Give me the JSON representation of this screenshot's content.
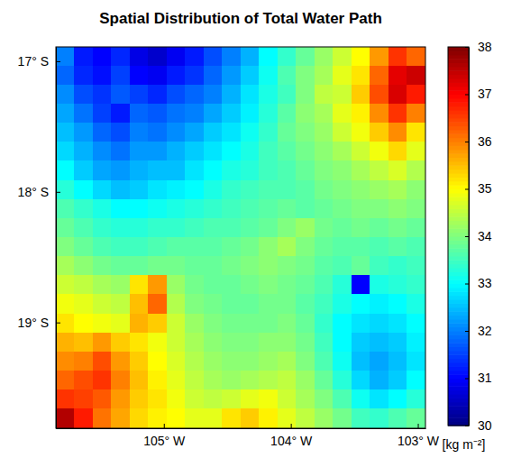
{
  "chart_data": {
    "type": "heatmap",
    "title": "Spatial Distribution of Total Water Path",
    "x": [
      -105.777,
      -105.632,
      -105.486,
      -105.341,
      -105.195,
      -105.05,
      -104.904,
      -104.759,
      -104.613,
      -104.468,
      -104.322,
      -104.177,
      -104.031,
      -103.886,
      -103.74,
      -103.595,
      -103.449,
      -103.304,
      -103.158,
      -103.013
    ],
    "y": [
      -16.963,
      -17.109,
      -17.255,
      -17.401,
      -17.547,
      -17.693,
      -17.839,
      -17.985,
      -18.131,
      -18.277,
      -18.423,
      -18.569,
      -18.715,
      -18.861,
      -19.007,
      -19.153,
      -19.299,
      -19.445,
      -19.591,
      -19.737
    ],
    "values": [
      [
        32.0,
        31.2,
        31.0,
        31.3,
        30.8,
        30.6,
        30.9,
        31.2,
        31.6,
        32.0,
        32.4,
        33.0,
        33.4,
        33.8,
        34.2,
        34.6,
        35.0,
        35.8,
        36.6,
        36.2
      ],
      [
        31.8,
        31.3,
        31.1,
        31.5,
        31.0,
        30.9,
        31.2,
        31.4,
        31.8,
        32.2,
        32.6,
        33.1,
        33.6,
        34.0,
        34.3,
        34.8,
        35.2,
        36.2,
        37.2,
        37.4
      ],
      [
        32.1,
        31.6,
        31.4,
        31.7,
        31.5,
        31.3,
        31.6,
        31.8,
        32.0,
        32.4,
        32.8,
        33.2,
        33.5,
        34.0,
        34.5,
        34.6,
        35.4,
        36.4,
        37.3,
        36.8
      ],
      [
        32.3,
        31.9,
        31.5,
        31.2,
        31.8,
        31.7,
        31.9,
        32.0,
        32.3,
        32.6,
        32.9,
        33.3,
        33.7,
        34.1,
        34.3,
        34.8,
        35.1,
        35.9,
        36.6,
        36.0
      ],
      [
        32.5,
        32.2,
        31.8,
        31.6,
        32.0,
        31.9,
        32.1,
        32.3,
        32.6,
        32.8,
        33.1,
        33.4,
        33.8,
        34.0,
        34.2,
        34.6,
        34.9,
        35.4,
        35.9,
        35.2
      ],
      [
        32.7,
        32.4,
        32.1,
        31.9,
        32.2,
        32.2,
        32.4,
        32.6,
        32.8,
        33.0,
        33.2,
        33.5,
        33.7,
        33.9,
        34.1,
        34.3,
        34.6,
        34.9,
        35.3,
        34.8
      ],
      [
        33.0,
        32.6,
        32.3,
        32.2,
        32.4,
        32.5,
        32.5,
        32.8,
        33.0,
        33.2,
        33.3,
        33.5,
        33.6,
        33.8,
        34.0,
        34.1,
        34.3,
        34.5,
        34.7,
        34.4
      ],
      [
        33.3,
        33.0,
        32.7,
        32.5,
        32.6,
        32.8,
        32.9,
        33.0,
        33.2,
        33.4,
        33.5,
        33.6,
        33.6,
        33.7,
        33.9,
        34.0,
        34.1,
        34.2,
        34.3,
        34.1
      ],
      [
        33.6,
        33.4,
        33.2,
        33.0,
        33.0,
        33.1,
        33.2,
        33.3,
        33.4,
        33.5,
        33.6,
        33.7,
        33.8,
        33.7,
        33.8,
        33.9,
        34.0,
        34.0,
        34.1,
        34.0
      ],
      [
        33.8,
        33.6,
        33.4,
        33.3,
        33.3,
        33.4,
        33.4,
        33.5,
        33.6,
        33.6,
        33.7,
        33.8,
        34.0,
        34.2,
        33.9,
        33.8,
        33.9,
        33.8,
        33.9,
        33.8
      ],
      [
        34.0,
        33.8,
        33.6,
        33.5,
        33.5,
        33.6,
        33.7,
        33.7,
        33.7,
        33.8,
        33.9,
        34.1,
        34.3,
        34.0,
        33.8,
        33.7,
        33.7,
        33.6,
        33.7,
        33.6
      ],
      [
        34.3,
        34.1,
        33.9,
        33.8,
        33.8,
        33.9,
        33.9,
        33.8,
        33.8,
        33.9,
        34.0,
        34.1,
        34.0,
        33.9,
        33.7,
        33.6,
        33.8,
        33.5,
        33.4,
        33.5
      ],
      [
        34.6,
        34.5,
        34.3,
        34.2,
        35.2,
        35.8,
        34.2,
        33.9,
        33.8,
        33.8,
        33.9,
        34.0,
        33.9,
        33.8,
        33.6,
        33.3,
        31.0,
        33.2,
        33.3,
        33.4
      ],
      [
        34.9,
        34.8,
        34.6,
        34.5,
        35.5,
        36.2,
        34.4,
        34.0,
        33.9,
        33.8,
        33.8,
        33.9,
        33.9,
        33.7,
        33.5,
        33.2,
        33.0,
        32.9,
        33.0,
        33.2
      ],
      [
        35.2,
        35.0,
        34.9,
        34.8,
        35.6,
        35.4,
        34.6,
        34.2,
        34.0,
        33.9,
        33.9,
        33.9,
        34.0,
        33.8,
        33.4,
        33.0,
        32.8,
        32.7,
        32.8,
        33.0
      ],
      [
        35.6,
        35.5,
        35.8,
        35.4,
        35.2,
        34.9,
        34.6,
        34.3,
        34.1,
        34.0,
        34.0,
        34.1,
        34.1,
        33.9,
        33.5,
        33.0,
        32.6,
        32.5,
        32.6,
        32.9
      ],
      [
        35.9,
        36.0,
        36.4,
        35.8,
        35.4,
        35.0,
        34.7,
        34.4,
        34.2,
        34.1,
        34.1,
        34.2,
        34.3,
        34.0,
        33.6,
        33.1,
        32.5,
        32.3,
        32.5,
        32.8
      ],
      [
        36.2,
        36.4,
        36.6,
        36.0,
        35.5,
        35.1,
        34.8,
        34.5,
        34.3,
        34.2,
        34.3,
        34.4,
        34.5,
        34.2,
        33.8,
        33.3,
        32.7,
        32.4,
        32.6,
        33.0
      ],
      [
        36.6,
        36.5,
        36.3,
        35.8,
        35.4,
        35.2,
        34.9,
        34.6,
        34.5,
        34.6,
        34.8,
        34.9,
        34.6,
        34.3,
        34.0,
        33.6,
        33.1,
        32.8,
        33.0,
        33.3
      ],
      [
        37.6,
        36.8,
        36.1,
        35.7,
        35.3,
        35.1,
        35.0,
        34.8,
        34.8,
        35.2,
        35.4,
        35.1,
        34.8,
        34.5,
        34.2,
        33.9,
        33.5,
        33.4,
        33.6,
        33.8
      ]
    ],
    "xlim": [
      -105.85,
      -102.94
    ],
    "ylim": [
      -19.81,
      -16.89
    ],
    "xticks": [
      {
        "value": -105,
        "label": "105° W"
      },
      {
        "value": -104,
        "label": "104° W"
      },
      {
        "value": -103,
        "label": "103° W"
      }
    ],
    "yticks": [
      {
        "value": -17,
        "label": "17° S"
      },
      {
        "value": -18,
        "label": "18° S"
      },
      {
        "value": -19,
        "label": "19° S"
      }
    ],
    "colorbar": {
      "label": "[kg m⁻²]",
      "range": [
        30,
        38
      ],
      "ticks": [
        30,
        31,
        32,
        33,
        34,
        35,
        36,
        37,
        38
      ]
    }
  }
}
